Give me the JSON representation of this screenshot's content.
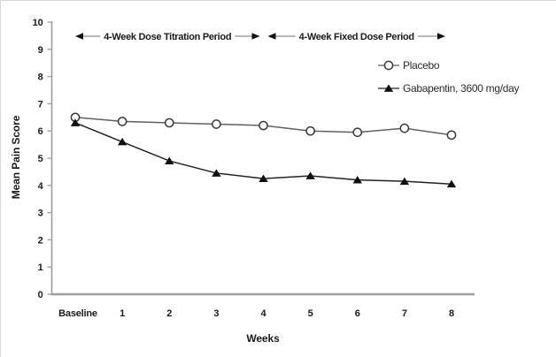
{
  "chart_data": {
    "type": "line",
    "title": "",
    "xlabel": "Weeks",
    "ylabel": "Mean Pain Score",
    "ylim": [
      0,
      10
    ],
    "yticks": [
      0,
      1,
      2,
      3,
      4,
      5,
      6,
      7,
      8,
      9,
      10
    ],
    "categories": [
      "Baseline",
      "1",
      "2",
      "3",
      "4",
      "5",
      "6",
      "7",
      "8"
    ],
    "series": [
      {
        "name": "Placebo",
        "marker": "open-circle",
        "line_color": "#606060",
        "marker_stroke": "#3a3a3a",
        "marker_fill": "#ffffff",
        "values": [
          6.5,
          6.35,
          6.3,
          6.25,
          6.2,
          6.0,
          5.95,
          6.1,
          5.85
        ]
      },
      {
        "name": "Gabapentin, 3600 mg/day",
        "marker": "filled-triangle",
        "line_color": "#222222",
        "marker_stroke": "#111111",
        "marker_fill": "#111111",
        "values": [
          6.3,
          5.6,
          4.9,
          4.45,
          4.25,
          4.35,
          4.2,
          4.15,
          4.05
        ]
      }
    ],
    "annotations": [
      {
        "label": "4-Week Dose Titration Period",
        "x_start": "Baseline",
        "x_end": "4"
      },
      {
        "label": "4-Week Fixed Dose Period",
        "x_start": "4",
        "x_end": "8"
      }
    ],
    "legend_position": "upper right",
    "grid": false,
    "colors": {
      "axis": "#9e9e9e",
      "annotation_line": "#8c8c8c",
      "annotation_arrowhead": "#111111",
      "text": "#1a1a1a"
    }
  }
}
